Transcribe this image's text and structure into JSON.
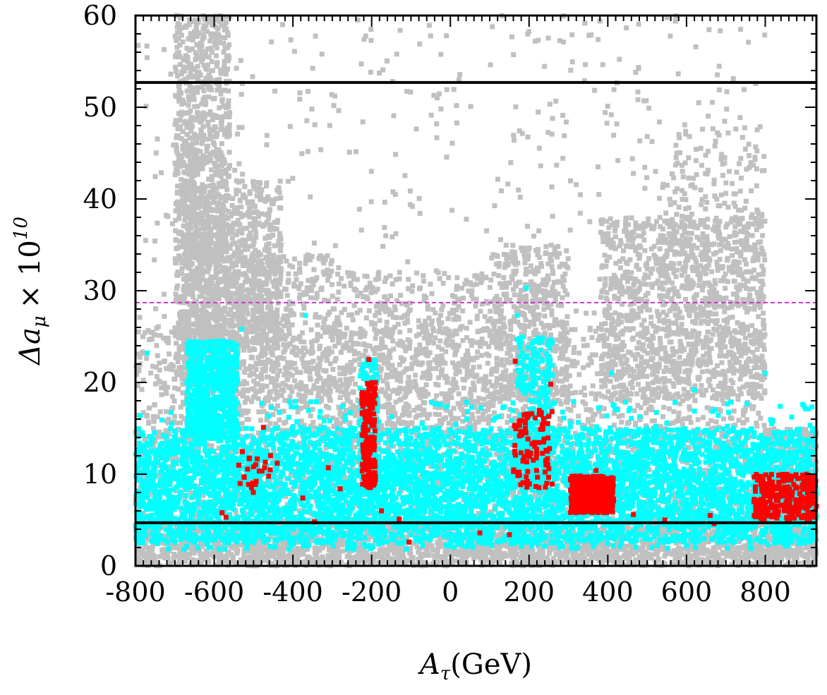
{
  "chart_data": {
    "type": "scatter",
    "title": "",
    "xlabel": {
      "symbol": "A",
      "subscript": "τ",
      "unit": "(GeV)"
    },
    "ylabel": {
      "symbol": "Δa",
      "subscript": "μ",
      "times": "× 10",
      "exponent": "10"
    },
    "xlim": [
      -800,
      930
    ],
    "ylim": [
      0,
      60
    ],
    "x_ticks": [
      -800,
      -600,
      -400,
      -200,
      0,
      200,
      400,
      600,
      800
    ],
    "y_ticks": [
      0,
      10,
      20,
      30,
      40,
      50,
      60
    ],
    "x_tick_labels": [
      "-800",
      "-600",
      "-400",
      "-200",
      "0",
      "200",
      "400",
      "600",
      "800"
    ],
    "y_tick_labels": [
      "0",
      "10",
      "20",
      "30",
      "40",
      "50",
      "60"
    ],
    "reference_lines": [
      {
        "y": 52.7,
        "style": "solid",
        "color": "#000000"
      },
      {
        "y": 4.7,
        "style": "solid",
        "color": "#000000"
      },
      {
        "y": 28.7,
        "style": "dashed",
        "color": "#cc33cc"
      }
    ],
    "series": [
      {
        "color": "#c0c0c0",
        "regions": [
          {
            "x": [
              -800,
              930
            ],
            "y": [
              0,
              4.5
            ],
            "n": 1800
          },
          {
            "x": [
              -800,
              930
            ],
            "y": [
              0,
              15
            ],
            "n": 2600
          },
          {
            "x": [
              -800,
              800
            ],
            "y": [
              14,
              26
            ],
            "n": 1500
          },
          {
            "x": [
              -700,
              -560
            ],
            "y": [
              20,
              60
            ],
            "n": 1100
          },
          {
            "x": [
              -680,
              -430
            ],
            "y": [
              24,
              42
            ],
            "n": 900
          },
          {
            "x": [
              -560,
              -300
            ],
            "y": [
              18,
              34
            ],
            "n": 400
          },
          {
            "x": [
              -300,
              100
            ],
            "y": [
              15,
              32
            ],
            "n": 550
          },
          {
            "x": [
              100,
              300
            ],
            "y": [
              18,
              35
            ],
            "n": 500
          },
          {
            "x": [
              380,
              800
            ],
            "y": [
              18,
              38
            ],
            "n": 1100
          },
          {
            "x": [
              540,
              800
            ],
            "y": [
              28,
              48
            ],
            "n": 220
          },
          {
            "x": [
              -800,
              800
            ],
            "y": [
              26,
              60
            ],
            "n": 420
          },
          {
            "x": [
              800,
              930
            ],
            "y": [
              3,
              15
            ],
            "n": 280
          }
        ]
      },
      {
        "color": "#00ffff",
        "regions": [
          {
            "x": [
              -800,
              930
            ],
            "y": [
              2.5,
              15
            ],
            "n": 4200
          },
          {
            "x": [
              -800,
              930
            ],
            "y": [
              4,
              12.5
            ],
            "n": 1800
          },
          {
            "x": [
              -670,
              -540
            ],
            "y": [
              14,
              24.5
            ],
            "n": 650
          },
          {
            "x": [
              -230,
              -185
            ],
            "y": [
              10,
              22.5
            ],
            "n": 170
          },
          {
            "x": [
              170,
              260
            ],
            "y": [
              10,
              25
            ],
            "n": 260
          },
          {
            "x": [
              -800,
              930
            ],
            "y": [
              15,
              18
            ],
            "n": 120
          },
          {
            "x": [
              -800,
              930
            ],
            "y": [
              1.8,
              3.5
            ],
            "n": 200
          }
        ],
        "points": [
          [
            -368,
            27.3
          ],
          [
            -530,
            25.8
          ],
          [
            193,
            30.3
          ],
          [
            170,
            27.3
          ],
          [
            -770,
            23.2
          ],
          [
            410,
            21.0
          ],
          [
            620,
            19.2
          ],
          [
            800,
            21.0
          ],
          [
            870,
            14.4
          ],
          [
            -40,
            12.3
          ]
        ]
      },
      {
        "color": "#ff0000",
        "regions": [
          {
            "x": [
              -225,
              -190
            ],
            "y": [
              8.5,
              20
            ],
            "n": 190
          },
          {
            "x": [
              160,
              260
            ],
            "y": [
              8.5,
              17
            ],
            "n": 100
          },
          {
            "x": [
              305,
              415
            ],
            "y": [
              5.8,
              9.8
            ],
            "n": 380
          },
          {
            "x": [
              770,
              930
            ],
            "y": [
              5,
              10
            ],
            "n": 260
          },
          {
            "x": [
              -540,
              -440
            ],
            "y": [
              8,
              12.5
            ],
            "n": 22
          }
        ],
        "points": [
          [
            -207,
            22.5
          ],
          [
            165,
            22.3
          ],
          [
            255,
            19.8
          ],
          [
            -475,
            15.1
          ],
          [
            -580,
            5.8
          ],
          [
            -570,
            5.3
          ],
          [
            -500,
            10.8
          ],
          [
            -470,
            11.3
          ],
          [
            -440,
            11.2
          ],
          [
            -375,
            7.4
          ],
          [
            -345,
            4.8
          ],
          [
            -310,
            10.7
          ],
          [
            -280,
            8.4
          ],
          [
            -175,
            6.0
          ],
          [
            -130,
            5.1
          ],
          [
            -105,
            2.6
          ],
          [
            75,
            3.6
          ],
          [
            150,
            3.4
          ],
          [
            370,
            10.4
          ],
          [
            465,
            5.6
          ],
          [
            545,
            5.0
          ],
          [
            660,
            5.5
          ],
          [
            670,
            4.6
          ]
        ]
      }
    ]
  }
}
